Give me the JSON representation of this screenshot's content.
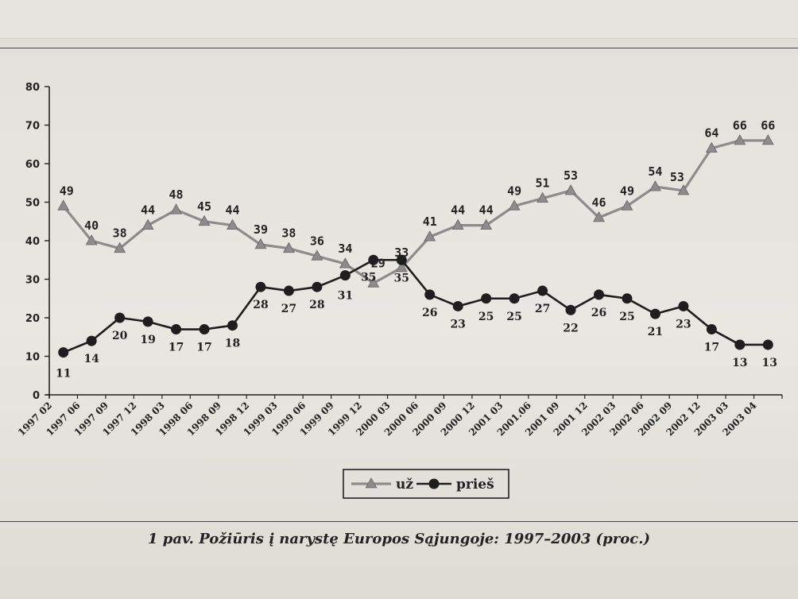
{
  "chart_data": {
    "type": "line",
    "caption": "1 pav. Požiūris į narystę Europos Sąjungoje: 1997–2003 (proc.)",
    "categories": [
      "1997 02",
      "1997 06",
      "1997 09",
      "1997 12",
      "1998 03",
      "1998 06",
      "1998 09",
      "1998 12",
      "1999 03",
      "1999 06",
      "1999 09",
      "1999 12",
      "2000 03",
      "2000 06",
      "2000 09",
      "2000 12",
      "2001 03",
      "2001.06",
      "2001 09",
      "2001 12",
      "2002 03",
      "2002 06",
      "2002 09",
      "2002 12",
      "2003 03",
      "2003 04"
    ],
    "series": [
      {
        "name": "už",
        "values": [
          49,
          40,
          38,
          44,
          48,
          45,
          44,
          39,
          38,
          36,
          34,
          29,
          33,
          41,
          44,
          44,
          49,
          51,
          53,
          46,
          49,
          54,
          53,
          64,
          66,
          66
        ],
        "marker": "triangle",
        "color": "#8c8c8c"
      },
      {
        "name": "prieš",
        "values": [
          11,
          14,
          20,
          19,
          17,
          17,
          18,
          28,
          27,
          28,
          31,
          35,
          35,
          26,
          23,
          25,
          25,
          27,
          22,
          26,
          25,
          21,
          23,
          17,
          13,
          13
        ],
        "marker": "circle",
        "color": "#1e1e1e"
      }
    ],
    "ylim": [
      0,
      80
    ],
    "yticks": [
      0,
      10,
      20,
      30,
      40,
      50,
      60,
      70,
      80
    ],
    "grid": false,
    "legend_position": "bottom-center"
  }
}
